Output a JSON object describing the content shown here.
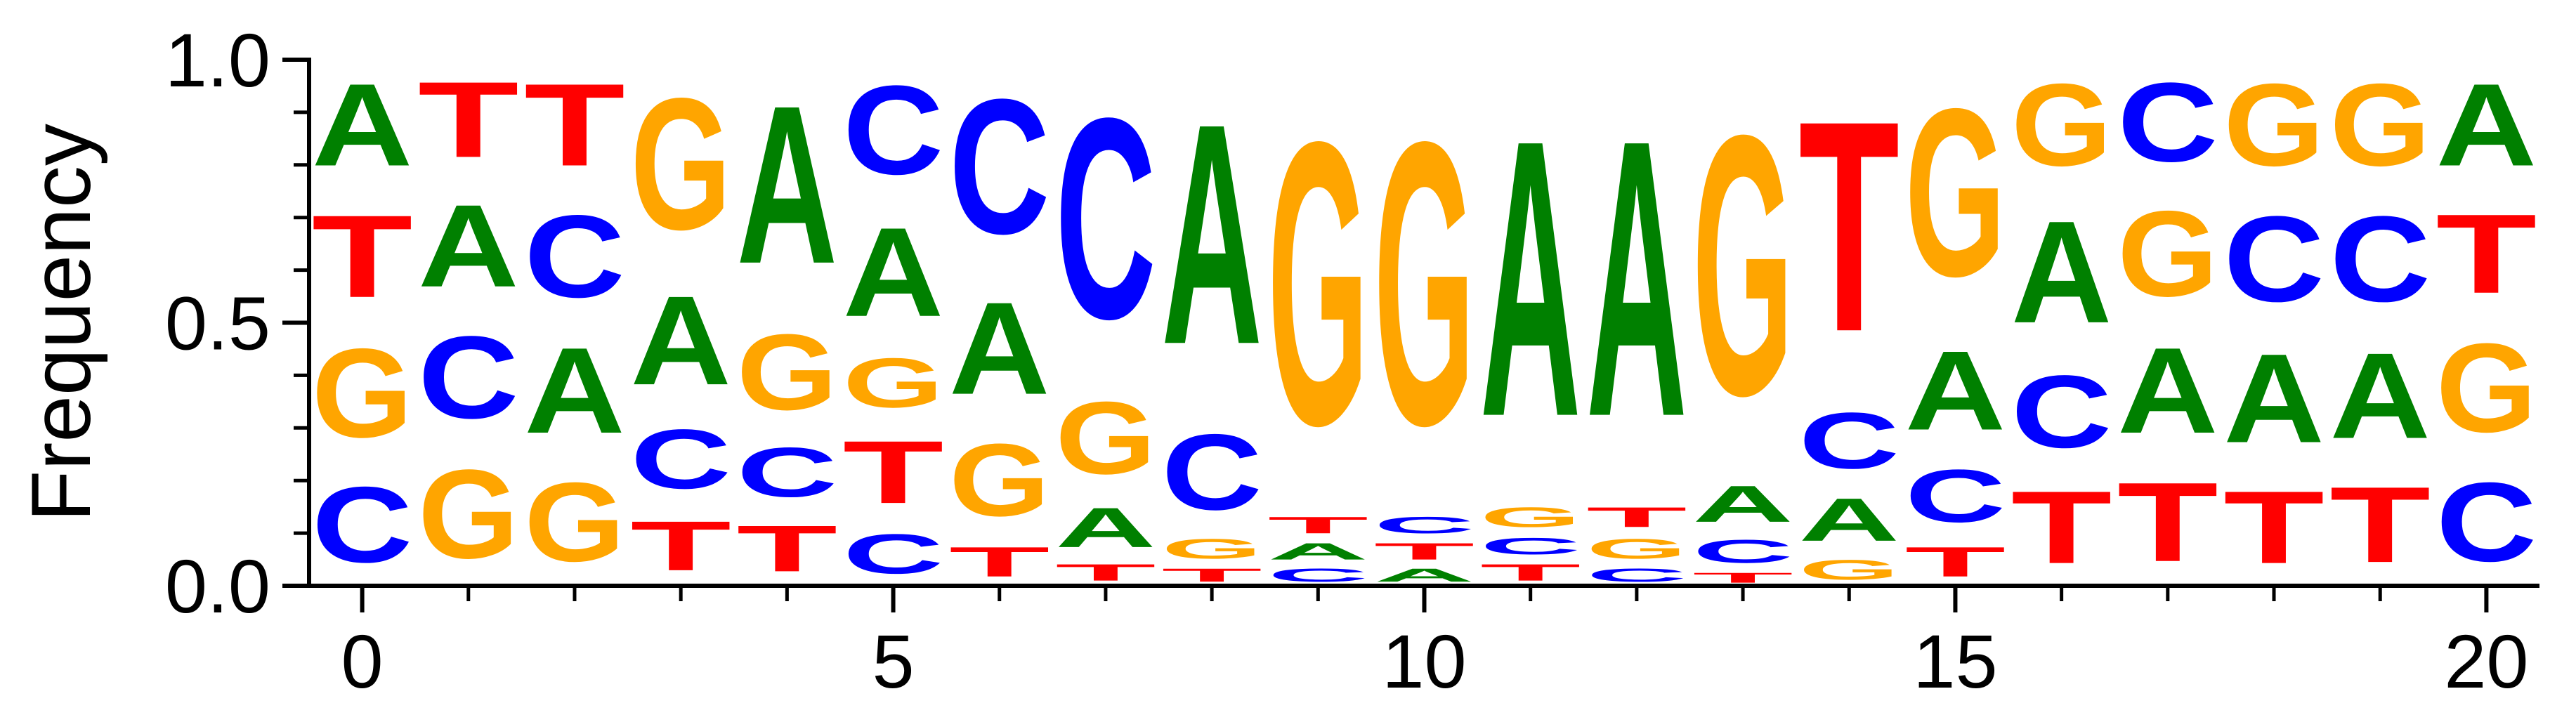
{
  "chart_data": {
    "type": "sequence-logo",
    "title": "",
    "xlabel": "",
    "ylabel": "Frequency",
    "xlim": [
      -0.5,
      20.5
    ],
    "ylim": [
      0,
      1
    ],
    "x_ticks_major": [
      0,
      5,
      10,
      15,
      20
    ],
    "x_ticks_minor": [
      1,
      2,
      3,
      4,
      6,
      7,
      8,
      9,
      11,
      12,
      13,
      14,
      16,
      17,
      18,
      19
    ],
    "y_ticks_major": [
      0.0,
      0.5,
      1.0
    ],
    "y_tick_labels": [
      "0.0",
      "0.5",
      "1.0"
    ],
    "y_ticks_minor": [
      0.1,
      0.2,
      0.3,
      0.4,
      0.6,
      0.7,
      0.8,
      0.9
    ],
    "x_tick_labels": [
      "0",
      "5",
      "10",
      "15",
      "20"
    ],
    "colors": {
      "A": "#008000",
      "C": "#0000ff",
      "G": "#ffa500",
      "T": "#ff0000"
    },
    "positions": [
      [
        {
          "letter": "C",
          "value": 0.23
        },
        {
          "letter": "G",
          "value": 0.27
        },
        {
          "letter": "T",
          "value": 0.25
        },
        {
          "letter": "A",
          "value": 0.25
        }
      ],
      [
        {
          "letter": "G",
          "value": 0.27
        },
        {
          "letter": "C",
          "value": 0.25
        },
        {
          "letter": "A",
          "value": 0.25
        },
        {
          "letter": "T",
          "value": 0.23
        }
      ],
      [
        {
          "letter": "G",
          "value": 0.24
        },
        {
          "letter": "A",
          "value": 0.26
        },
        {
          "letter": "C",
          "value": 0.25
        },
        {
          "letter": "T",
          "value": 0.25
        }
      ],
      [
        {
          "letter": "T",
          "value": 0.15
        },
        {
          "letter": "C",
          "value": 0.18
        },
        {
          "letter": "A",
          "value": 0.27
        },
        {
          "letter": "G",
          "value": 0.4
        }
      ],
      [
        {
          "letter": "T",
          "value": 0.14
        },
        {
          "letter": "C",
          "value": 0.15
        },
        {
          "letter": "G",
          "value": 0.23
        },
        {
          "letter": "A",
          "value": 0.48
        }
      ],
      [
        {
          "letter": "C",
          "value": 0.12
        },
        {
          "letter": "T",
          "value": 0.19
        },
        {
          "letter": "G",
          "value": 0.15
        },
        {
          "letter": "A",
          "value": 0.27
        },
        {
          "letter": "C",
          "value": 0.27
        }
      ],
      [
        {
          "letter": "T",
          "value": 0.09
        },
        {
          "letter": "G",
          "value": 0.22
        },
        {
          "letter": "A",
          "value": 0.28
        },
        {
          "letter": "C",
          "value": 0.41
        }
      ],
      [
        {
          "letter": "T",
          "value": 0.05
        },
        {
          "letter": "A",
          "value": 0.12
        },
        {
          "letter": "G",
          "value": 0.22
        },
        {
          "letter": "C",
          "value": 0.61
        }
      ],
      [
        {
          "letter": "T",
          "value": 0.04
        },
        {
          "letter": "G",
          "value": 0.06
        },
        {
          "letter": "C",
          "value": 0.23
        },
        {
          "letter": "A",
          "value": 0.67
        }
      ],
      [
        {
          "letter": "C",
          "value": 0.04
        },
        {
          "letter": "A",
          "value": 0.05
        },
        {
          "letter": "T",
          "value": 0.05
        },
        {
          "letter": "G",
          "value": 0.86
        }
      ],
      [
        {
          "letter": "A",
          "value": 0.04
        },
        {
          "letter": "T",
          "value": 0.05
        },
        {
          "letter": "C",
          "value": 0.05
        },
        {
          "letter": "G",
          "value": 0.86
        }
      ],
      [
        {
          "letter": "T",
          "value": 0.05
        },
        {
          "letter": "C",
          "value": 0.05
        },
        {
          "letter": "G",
          "value": 0.06
        },
        {
          "letter": "A",
          "value": 0.84
        }
      ],
      [
        {
          "letter": "C",
          "value": 0.04
        },
        {
          "letter": "G",
          "value": 0.06
        },
        {
          "letter": "T",
          "value": 0.06
        },
        {
          "letter": "A",
          "value": 0.84
        }
      ],
      [
        {
          "letter": "T",
          "value": 0.03
        },
        {
          "letter": "C",
          "value": 0.07
        },
        {
          "letter": "A",
          "value": 0.11
        },
        {
          "letter": "G",
          "value": 0.79
        }
      ],
      [
        {
          "letter": "G",
          "value": 0.06
        },
        {
          "letter": "A",
          "value": 0.13
        },
        {
          "letter": "C",
          "value": 0.17
        },
        {
          "letter": "T",
          "value": 0.64
        }
      ],
      [
        {
          "letter": "T",
          "value": 0.09
        },
        {
          "letter": "C",
          "value": 0.16
        },
        {
          "letter": "A",
          "value": 0.24
        },
        {
          "letter": "G",
          "value": 0.51
        }
      ],
      [
        {
          "letter": "T",
          "value": 0.22
        },
        {
          "letter": "C",
          "value": 0.22
        },
        {
          "letter": "A",
          "value": 0.31
        },
        {
          "letter": "G",
          "value": 0.25
        }
      ],
      [
        {
          "letter": "T",
          "value": 0.24
        },
        {
          "letter": "A",
          "value": 0.26
        },
        {
          "letter": "G",
          "value": 0.26
        },
        {
          "letter": "C",
          "value": 0.24
        }
      ],
      [
        {
          "letter": "T",
          "value": 0.22
        },
        {
          "letter": "A",
          "value": 0.27
        },
        {
          "letter": "C",
          "value": 0.26
        },
        {
          "letter": "G",
          "value": 0.25
        }
      ],
      [
        {
          "letter": "T",
          "value": 0.23
        },
        {
          "letter": "A",
          "value": 0.26
        },
        {
          "letter": "C",
          "value": 0.26
        },
        {
          "letter": "G",
          "value": 0.25
        }
      ],
      [
        {
          "letter": "C",
          "value": 0.24
        },
        {
          "letter": "G",
          "value": 0.27
        },
        {
          "letter": "T",
          "value": 0.24
        },
        {
          "letter": "A",
          "value": 0.25
        }
      ]
    ]
  }
}
